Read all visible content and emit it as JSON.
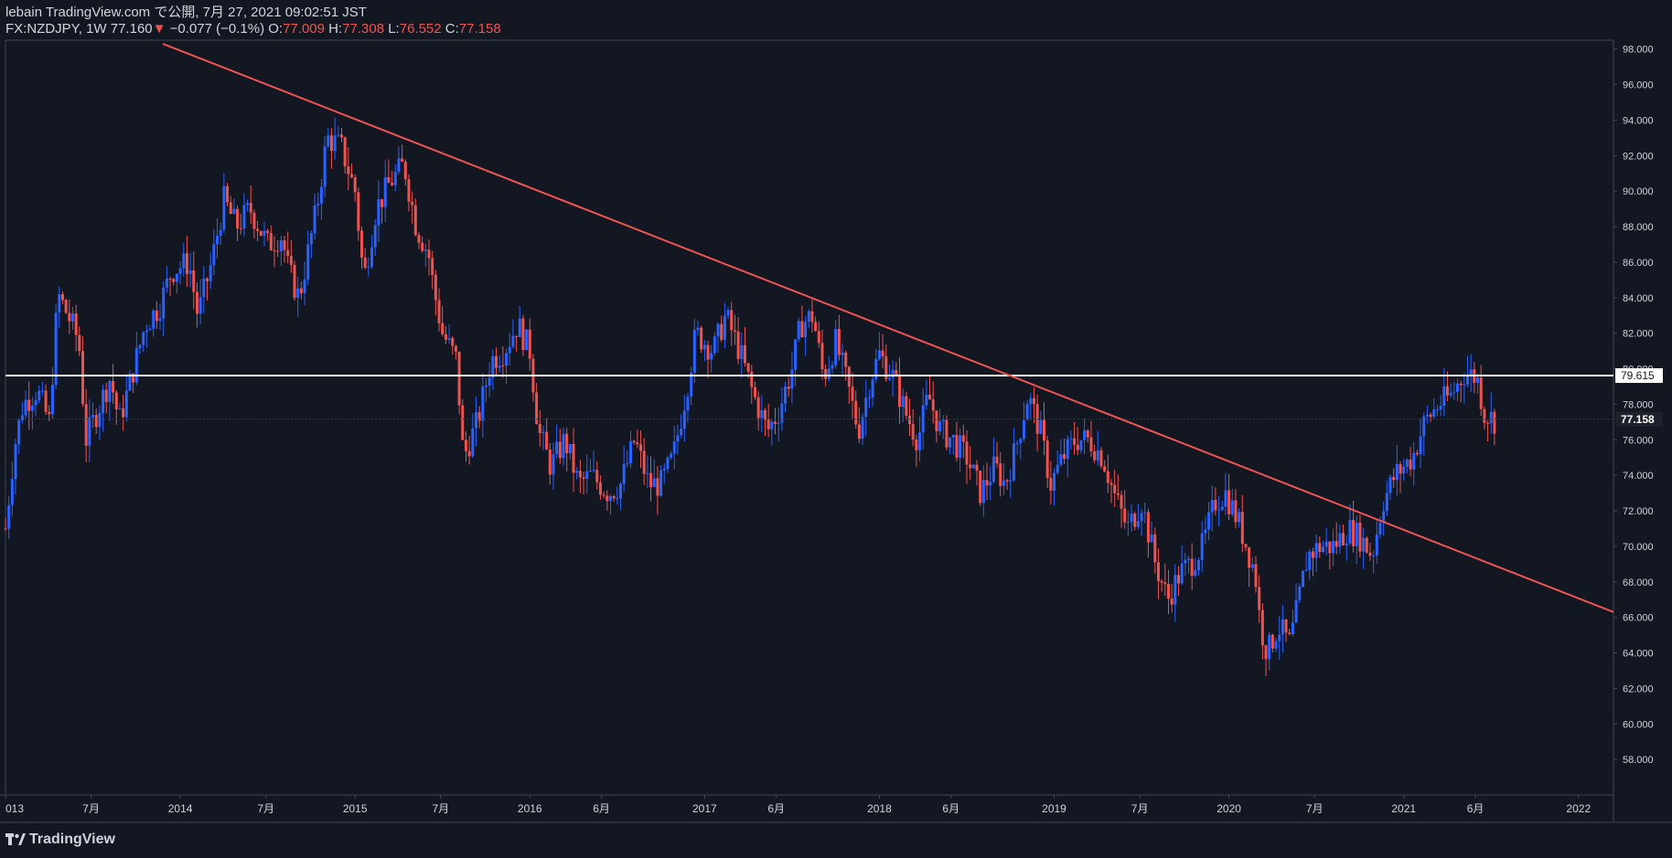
{
  "header": {
    "publisher": "lebain TradingView.com で公開, 7月 27, 2021 09:02:51 JST",
    "symbol": "FX:NZDJPY, 1W",
    "last": "77.160",
    "arrow": "▼",
    "change": "−0.077 (−0.1%)",
    "o_label": "O:",
    "o_value": "77.009",
    "h_label": "H:",
    "h_value": "77.308",
    "l_label": "L:",
    "l_value": "76.552",
    "c_label": "C:",
    "c_value": "77.158"
  },
  "brand": {
    "name": "TradingView",
    "icon": "tradingview-logo-icon"
  },
  "colors": {
    "background": "#131722",
    "up": "#2962ff",
    "down": "#ef5350",
    "trendline": "#f05454",
    "horizontal": "#ffffff",
    "axis_text": "#d1d4dc",
    "axis_line": "#434651"
  },
  "chart_data": {
    "type": "candlestick",
    "symbol": "FX:NZDJPY",
    "interval": "1W",
    "xlim": [
      2013.0,
      2022.2
    ],
    "ylim": [
      56,
      98.5
    ],
    "y_ticks": [
      "58.000",
      "60.000",
      "62.000",
      "64.000",
      "66.000",
      "68.000",
      "70.000",
      "72.000",
      "74.000",
      "76.000",
      "78.000",
      "80.000",
      "82.000",
      "84.000",
      "86.000",
      "88.000",
      "90.000",
      "92.000",
      "94.000",
      "96.000",
      "98.000"
    ],
    "x_ticks": [
      {
        "t": 2013.0,
        "label": "013"
      },
      {
        "t": 2013.49,
        "label": "7月"
      },
      {
        "t": 2014.0,
        "label": "2014"
      },
      {
        "t": 2014.49,
        "label": "7月"
      },
      {
        "t": 2015.0,
        "label": "2015"
      },
      {
        "t": 2015.49,
        "label": "7月"
      },
      {
        "t": 2016.0,
        "label": "2016"
      },
      {
        "t": 2016.41,
        "label": "6月"
      },
      {
        "t": 2017.0,
        "label": "2017"
      },
      {
        "t": 2017.41,
        "label": "6月"
      },
      {
        "t": 2018.0,
        "label": "2018"
      },
      {
        "t": 2018.41,
        "label": "6月"
      },
      {
        "t": 2019.0,
        "label": "2019"
      },
      {
        "t": 2019.49,
        "label": "7月"
      },
      {
        "t": 2020.0,
        "label": "2020"
      },
      {
        "t": 2020.49,
        "label": "7月"
      },
      {
        "t": 2021.0,
        "label": "2021"
      },
      {
        "t": 2021.41,
        "label": "6月"
      },
      {
        "t": 2022.0,
        "label": "2022"
      }
    ],
    "horizontal_line": {
      "value": 79.615,
      "label": "79.615"
    },
    "last_price": {
      "value": 77.158,
      "label": "77.158"
    },
    "trendline": {
      "x1": 2013.9,
      "y1": 98.3,
      "x2": 2022.2,
      "y2": 66.3
    },
    "price_path": [
      [
        2013.0,
        71.0
      ],
      [
        2013.05,
        75.5
      ],
      [
        2013.1,
        78.0
      ],
      [
        2013.18,
        78.8
      ],
      [
        2013.25,
        77.0
      ],
      [
        2013.3,
        84.2
      ],
      [
        2013.38,
        82.5
      ],
      [
        2013.42,
        81.5
      ],
      [
        2013.46,
        76.0
      ],
      [
        2013.52,
        77.5
      ],
      [
        2013.6,
        79.5
      ],
      [
        2013.65,
        77.0
      ],
      [
        2013.72,
        79.5
      ],
      [
        2013.8,
        82.5
      ],
      [
        2013.88,
        83.5
      ],
      [
        2013.95,
        85.5
      ],
      [
        2014.05,
        86.0
      ],
      [
        2014.1,
        83.0
      ],
      [
        2014.18,
        86.0
      ],
      [
        2014.25,
        89.5
      ],
      [
        2014.32,
        88.0
      ],
      [
        2014.4,
        89.0
      ],
      [
        2014.5,
        87.0
      ],
      [
        2014.58,
        87.5
      ],
      [
        2014.62,
        85.5
      ],
      [
        2014.68,
        84.0
      ],
      [
        2014.78,
        89.0
      ],
      [
        2014.84,
        93.0
      ],
      [
        2014.92,
        92.5
      ],
      [
        2015.0,
        90.0
      ],
      [
        2015.05,
        85.0
      ],
      [
        2015.12,
        89.0
      ],
      [
        2015.2,
        90.5
      ],
      [
        2015.28,
        91.5
      ],
      [
        2015.35,
        88.0
      ],
      [
        2015.42,
        86.5
      ],
      [
        2015.45,
        84.5
      ],
      [
        2015.5,
        82.0
      ],
      [
        2015.58,
        80.5
      ],
      [
        2015.62,
        75.0
      ],
      [
        2015.7,
        77.0
      ],
      [
        2015.78,
        80.5
      ],
      [
        2015.85,
        81.0
      ],
      [
        2015.93,
        82.5
      ],
      [
        2016.0,
        81.0
      ],
      [
        2016.05,
        76.5
      ],
      [
        2016.12,
        74.5
      ],
      [
        2016.2,
        76.0
      ],
      [
        2016.28,
        73.5
      ],
      [
        2016.35,
        74.0
      ],
      [
        2016.45,
        73.0
      ],
      [
        2016.52,
        73.5
      ],
      [
        2016.6,
        76.0
      ],
      [
        2016.68,
        73.5
      ],
      [
        2016.75,
        73.5
      ],
      [
        2016.82,
        75.0
      ],
      [
        2016.9,
        79.0
      ],
      [
        2016.95,
        82.0
      ],
      [
        2017.05,
        81.0
      ],
      [
        2017.12,
        83.0
      ],
      [
        2017.2,
        81.0
      ],
      [
        2017.28,
        78.5
      ],
      [
        2017.36,
        76.5
      ],
      [
        2017.42,
        77.5
      ],
      [
        2017.5,
        80.0
      ],
      [
        2017.55,
        82.5
      ],
      [
        2017.62,
        83.0
      ],
      [
        2017.68,
        79.5
      ],
      [
        2017.75,
        81.5
      ],
      [
        2017.82,
        79.0
      ],
      [
        2017.88,
        76.5
      ],
      [
        2017.95,
        79.5
      ],
      [
        2018.0,
        80.8
      ],
      [
        2018.08,
        79.5
      ],
      [
        2018.15,
        77.5
      ],
      [
        2018.22,
        76.0
      ],
      [
        2018.28,
        78.5
      ],
      [
        2018.35,
        76.5
      ],
      [
        2018.42,
        76.0
      ],
      [
        2018.5,
        75.0
      ],
      [
        2018.58,
        73.0
      ],
      [
        2018.66,
        74.5
      ],
      [
        2018.72,
        73.5
      ],
      [
        2018.78,
        75.5
      ],
      [
        2018.85,
        78.5
      ],
      [
        2018.92,
        76.5
      ],
      [
        2018.98,
        73.5
      ],
      [
        2019.05,
        75.0
      ],
      [
        2019.12,
        76.0
      ],
      [
        2019.2,
        76.0
      ],
      [
        2019.28,
        75.0
      ],
      [
        2019.34,
        73.0
      ],
      [
        2019.42,
        71.0
      ],
      [
        2019.5,
        72.5
      ],
      [
        2019.58,
        69.0
      ],
      [
        2019.65,
        67.0
      ],
      [
        2019.72,
        68.5
      ],
      [
        2019.78,
        69.0
      ],
      [
        2019.85,
        70.0
      ],
      [
        2019.92,
        72.5
      ],
      [
        2019.98,
        73.0
      ],
      [
        2020.05,
        71.5
      ],
      [
        2020.1,
        70.0
      ],
      [
        2020.15,
        68.5
      ],
      [
        2020.18,
        65.5
      ],
      [
        2020.22,
        64.0
      ],
      [
        2020.28,
        65.5
      ],
      [
        2020.35,
        64.5
      ],
      [
        2020.4,
        67.0
      ],
      [
        2020.45,
        69.5
      ],
      [
        2020.52,
        70.0
      ],
      [
        2020.6,
        70.0
      ],
      [
        2020.68,
        71.0
      ],
      [
        2020.75,
        70.5
      ],
      [
        2020.82,
        69.5
      ],
      [
        2020.88,
        72.5
      ],
      [
        2020.95,
        74.0
      ],
      [
        2021.05,
        75.0
      ],
      [
        2021.12,
        77.0
      ],
      [
        2021.2,
        78.0
      ],
      [
        2021.27,
        78.5
      ],
      [
        2021.35,
        79.8
      ],
      [
        2021.42,
        79.5
      ],
      [
        2021.46,
        77.5
      ],
      [
        2021.52,
        77.1
      ]
    ]
  }
}
